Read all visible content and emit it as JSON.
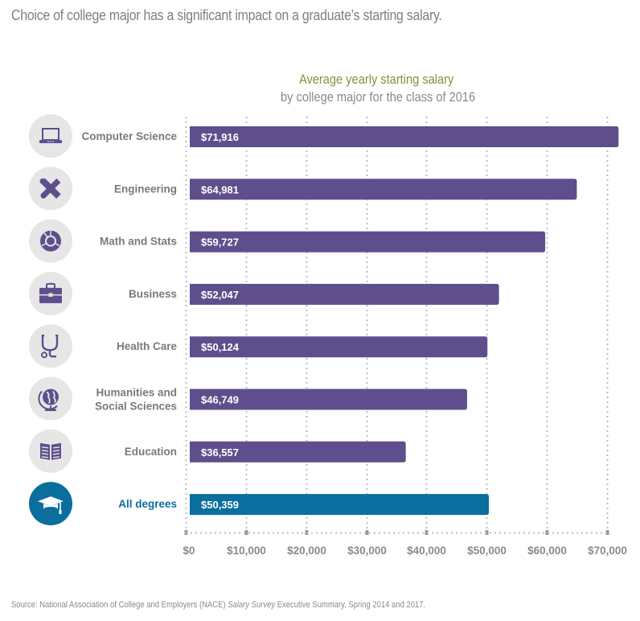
{
  "headline": "Choice of college major has a significant impact on a graduate’s starting salary.",
  "source": {
    "prefix": "Source: National Association of College and Employers (NACE) ",
    "italic": "Salary Survey",
    "suffix": " Executive Summary, Spring 2014 and 2017."
  },
  "colors": {
    "bar": "#5e4f8c",
    "bar_highlight": "#0a6e9e",
    "icon_bg": "#e6e6e6",
    "icon_fg": "#5e4f8c",
    "icon_highlight_bg": "#0a6e9e",
    "title": "#7f9440",
    "grid": "#bdbdbd"
  },
  "chart_data": {
    "type": "bar",
    "orientation": "horizontal",
    "title": "Average yearly starting salary",
    "subtitle": "by college major for the class of 2016",
    "xlabel": "",
    "ylabel": "",
    "xlim": [
      0,
      70000
    ],
    "grid": true,
    "categories": [
      {
        "label": "Computer Science",
        "icon": "laptop-icon",
        "value": 71916,
        "value_label": "$71,916",
        "highlight": false
      },
      {
        "label": "Engineering",
        "icon": "ruler-wrench-icon",
        "value": 64981,
        "value_label": "$64,981",
        "highlight": false
      },
      {
        "label": "Math and Stats",
        "icon": "pie-ring-icon",
        "value": 59727,
        "value_label": "$59,727",
        "highlight": false
      },
      {
        "label": "Business",
        "icon": "briefcase-icon",
        "value": 52047,
        "value_label": "$52,047",
        "highlight": false
      },
      {
        "label": "Health Care",
        "icon": "stethoscope-icon",
        "value": 50124,
        "value_label": "$50,124",
        "highlight": false
      },
      {
        "label": "Humanities and\nSocial Sciences",
        "icon": "globe-icon",
        "value": 46749,
        "value_label": "$46,749",
        "highlight": false
      },
      {
        "label": "Education",
        "icon": "open-book-icon",
        "value": 36557,
        "value_label": "$36,557",
        "highlight": false
      },
      {
        "label": "All degrees",
        "icon": "graduation-cap-icon",
        "value": 50359,
        "value_label": "$50,359",
        "highlight": true
      }
    ],
    "ticks": [
      {
        "value": 0,
        "label": "$0"
      },
      {
        "value": 10000,
        "label": "$10,000"
      },
      {
        "value": 20000,
        "label": "$20,000"
      },
      {
        "value": 30000,
        "label": "$30,000"
      },
      {
        "value": 40000,
        "label": "$40,000"
      },
      {
        "value": 50000,
        "label": "$50,000"
      },
      {
        "value": 60000,
        "label": "$60,000"
      },
      {
        "value": 70000,
        "label": "$70,000"
      }
    ]
  }
}
